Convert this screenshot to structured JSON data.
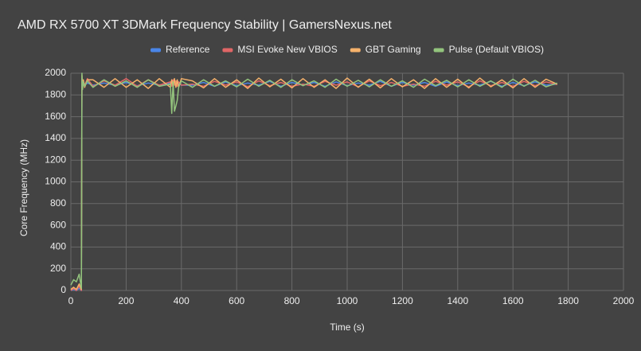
{
  "chart_data": {
    "type": "line",
    "title": "AMD RX 5700 XT 3DMark Frequency Stability | GamersNexus.net",
    "x_label": "Time (s)",
    "y_label": "Core Frequency (MHz)",
    "xlim": [
      0,
      2000
    ],
    "xticks": [
      0,
      200,
      400,
      600,
      800,
      1000,
      1200,
      1400,
      1600,
      1800,
      2000
    ],
    "ylim": [
      0,
      2000
    ],
    "yticks": [
      0,
      200,
      400,
      600,
      800,
      1000,
      1200,
      1400,
      1600,
      1800,
      2000
    ],
    "grid": true,
    "legend": "top",
    "x": [
      0,
      10,
      20,
      30,
      38,
      40,
      42,
      45,
      50,
      60,
      80,
      120,
      160,
      200,
      240,
      280,
      320,
      360,
      365,
      370,
      375,
      380,
      385,
      390,
      400,
      440,
      480,
      520,
      560,
      600,
      640,
      680,
      720,
      760,
      800,
      840,
      880,
      920,
      960,
      1000,
      1040,
      1080,
      1120,
      1160,
      1200,
      1240,
      1280,
      1320,
      1360,
      1400,
      1440,
      1480,
      1520,
      1560,
      1600,
      1640,
      1680,
      1720,
      1760
    ],
    "series": [
      {
        "name": "Reference",
        "color": "#4a86e8",
        "values": [
          0,
          10,
          0,
          20,
          0,
          1900,
          1880,
          1910,
          1890,
          1910,
          1890,
          1910,
          1890,
          1915,
          1885,
          1910,
          1890,
          1910,
          1890,
          1910,
          1895,
          1910,
          1890,
          1905,
          1890,
          1890,
          1915,
          1880,
          1920,
          1885,
          1910,
          1890,
          1925,
          1880,
          1915,
          1890,
          1915,
          1880,
          1920,
          1885,
          1910,
          1890,
          1925,
          1880,
          1915,
          1890,
          1915,
          1880,
          1920,
          1885,
          1910,
          1890,
          1925,
          1880,
          1915,
          1885,
          1920,
          1890,
          1900
        ]
      },
      {
        "name": "MSI Evoke New VBIOS",
        "color": "#e06666",
        "values": [
          0,
          20,
          0,
          40,
          0,
          1950,
          1860,
          1930,
          1890,
          1950,
          1880,
          1930,
          1890,
          1950,
          1880,
          1940,
          1890,
          1920,
          1880,
          1940,
          1890,
          1930,
          1880,
          1920,
          1890,
          1900,
          1880,
          1925,
          1890,
          1920,
          1875,
          1930,
          1885,
          1915,
          1880,
          1900,
          1880,
          1925,
          1890,
          1920,
          1875,
          1930,
          1885,
          1915,
          1880,
          1900,
          1880,
          1925,
          1890,
          1920,
          1875,
          1930,
          1885,
          1915,
          1880,
          1925,
          1885,
          1920,
          1895
        ]
      },
      {
        "name": "GBT Gaming",
        "color": "#f6b26b",
        "values": [
          10,
          30,
          10,
          60,
          10,
          1980,
          1870,
          1940,
          1870,
          1940,
          1940,
          1870,
          1950,
          1870,
          1940,
          1860,
          1950,
          1870,
          1940,
          1870,
          1950,
          1870,
          1940,
          1870,
          1950,
          1930,
          1865,
          1950,
          1870,
          1940,
          1860,
          1955,
          1875,
          1945,
          1865,
          1950,
          1870,
          1940,
          1860,
          1955,
          1870,
          1945,
          1865,
          1950,
          1875,
          1940,
          1860,
          1950,
          1870,
          1945,
          1865,
          1955,
          1875,
          1940,
          1865,
          1950,
          1870,
          1945,
          1900
        ]
      },
      {
        "name": "Pulse (Default VBIOS)",
        "color": "#93c47d",
        "values": [
          50,
          100,
          80,
          150,
          20,
          2000,
          1850,
          1920,
          1880,
          1930,
          1870,
          1940,
          1880,
          1930,
          1870,
          1940,
          1880,
          1900,
          1630,
          1920,
          1650,
          1700,
          1750,
          1870,
          1930,
          1870,
          1940,
          1880,
          1930,
          1875,
          1945,
          1880,
          1935,
          1870,
          1940,
          1885,
          1930,
          1870,
          1945,
          1880,
          1935,
          1875,
          1940,
          1880,
          1930,
          1870,
          1945,
          1885,
          1935,
          1875,
          1940,
          1880,
          1930,
          1870,
          1945,
          1880,
          1935,
          1875,
          1910
        ]
      }
    ]
  }
}
